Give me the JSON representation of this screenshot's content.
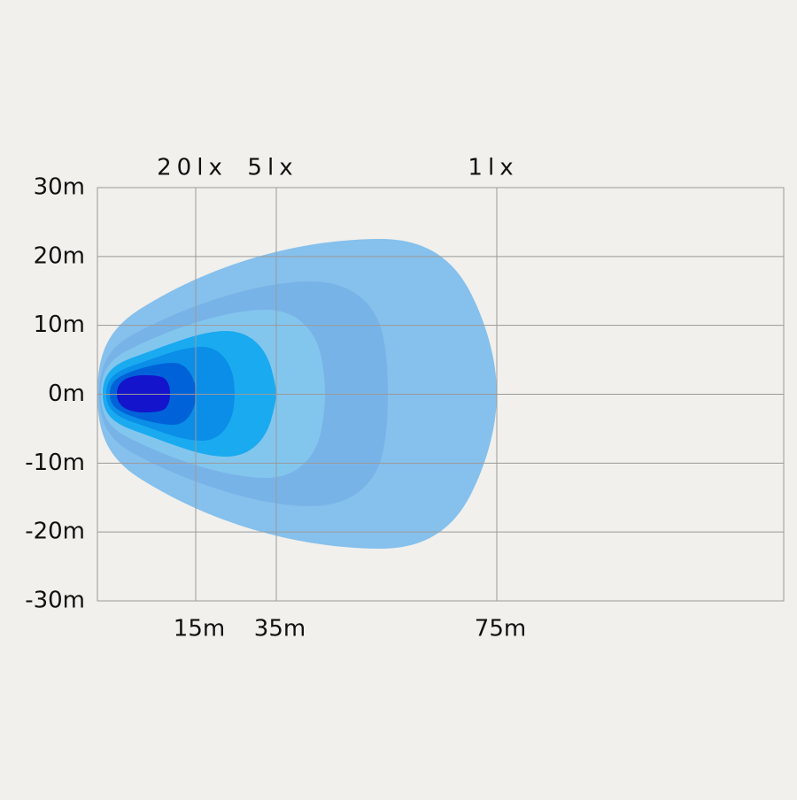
{
  "y_axis": {
    "labels": [
      "30m",
      "20m",
      "10m",
      "0m",
      "-10m",
      "-20m",
      "-30m"
    ]
  },
  "x_axis": {
    "labels": [
      "15m",
      "35m",
      "75m"
    ]
  },
  "isolux": {
    "labels": [
      "20lx",
      "5lx",
      "1lx"
    ]
  }
}
